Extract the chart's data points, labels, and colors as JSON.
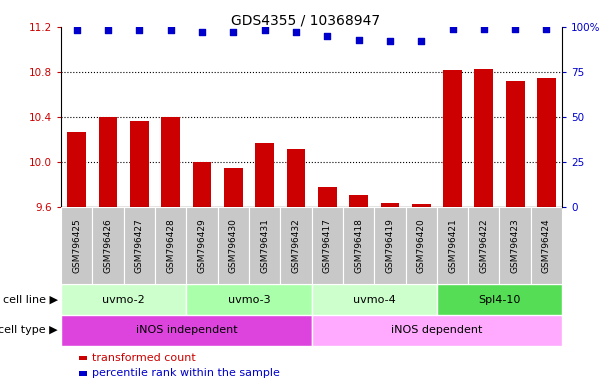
{
  "title": "GDS4355 / 10368947",
  "samples": [
    "GSM796425",
    "GSM796426",
    "GSM796427",
    "GSM796428",
    "GSM796429",
    "GSM796430",
    "GSM796431",
    "GSM796432",
    "GSM796417",
    "GSM796418",
    "GSM796419",
    "GSM796420",
    "GSM796421",
    "GSM796422",
    "GSM796423",
    "GSM796424"
  ],
  "bar_values": [
    10.27,
    10.4,
    10.37,
    10.4,
    10.0,
    9.95,
    10.17,
    10.12,
    9.78,
    9.71,
    9.64,
    9.63,
    10.82,
    10.83,
    10.72,
    10.75
  ],
  "dot_values": [
    98,
    98,
    98,
    98,
    97,
    97,
    98,
    97,
    95,
    93,
    92,
    92,
    99,
    99,
    99,
    99
  ],
  "ylim_left": [
    9.6,
    11.2
  ],
  "ylim_right": [
    0,
    100
  ],
  "yticks_left": [
    9.6,
    10.0,
    10.4,
    10.8,
    11.2
  ],
  "yticks_right": [
    0,
    25,
    50,
    75,
    100
  ],
  "ytick_labels_right": [
    "0",
    "25",
    "50",
    "75",
    "100%"
  ],
  "hlines": [
    10.0,
    10.4,
    10.8
  ],
  "bar_color": "#cc0000",
  "dot_color": "#0000cc",
  "cell_line_groups": [
    {
      "label": "uvmo-2",
      "start": 0,
      "end": 3,
      "color": "#ccffcc"
    },
    {
      "label": "uvmo-3",
      "start": 4,
      "end": 7,
      "color": "#aaffaa"
    },
    {
      "label": "uvmo-4",
      "start": 8,
      "end": 11,
      "color": "#ccffcc"
    },
    {
      "label": "Spl4-10",
      "start": 12,
      "end": 15,
      "color": "#55dd55"
    }
  ],
  "cell_type_groups": [
    {
      "label": "iNOS independent",
      "start": 0,
      "end": 7,
      "color": "#dd44dd"
    },
    {
      "label": "iNOS dependent",
      "start": 8,
      "end": 15,
      "color": "#ffaaff"
    }
  ],
  "cell_line_label": "cell line",
  "cell_type_label": "cell type",
  "legend_items": [
    {
      "label": "transformed count",
      "color": "#cc0000"
    },
    {
      "label": "percentile rank within the sample",
      "color": "#0000cc"
    }
  ],
  "tick_color_left": "#cc0000",
  "tick_color_right": "#0000cc",
  "bar_width": 0.6,
  "xticklabel_fontsize": 6.5,
  "yticklabel_fontsize": 7.5,
  "title_fontsize": 10,
  "sample_box_color": "#c8c8c8"
}
